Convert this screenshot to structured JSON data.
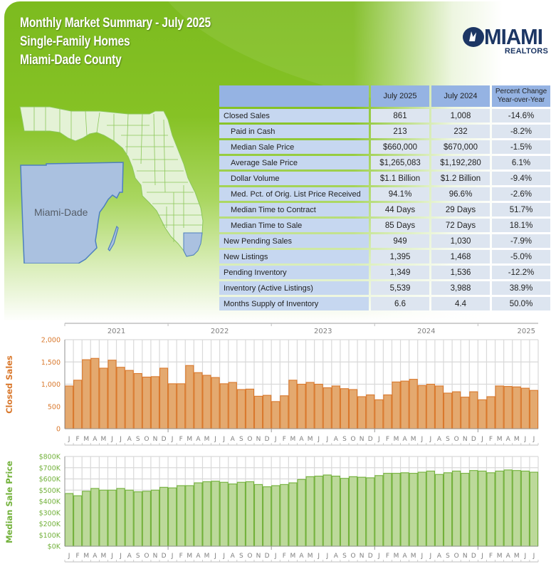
{
  "header": {
    "title_line1": "Monthly Market Summary - July 2025",
    "title_line2": "Single-Family Homes",
    "title_line3": "Miami-Dade County"
  },
  "logo": {
    "name": "MIAMI",
    "subtitle": "REALTORS"
  },
  "map": {
    "highlight_label": "Miami-Dade",
    "highlight_color": "#aac1e0",
    "state_fill": "#e4f2d6"
  },
  "summary_table": {
    "columns": [
      "",
      "July 2025",
      "July 2024",
      "Percent Change Year-over-Year"
    ],
    "col3_line1": "Percent Change",
    "col3_line2": "Year-over-Year",
    "rows": [
      {
        "label": "Closed Sales",
        "indent": false,
        "jul2025": "861",
        "jul2024": "1,008",
        "pct": "-14.6%"
      },
      {
        "label": "Paid in Cash",
        "indent": true,
        "jul2025": "213",
        "jul2024": "232",
        "pct": "-8.2%"
      },
      {
        "label": "Median Sale Price",
        "indent": true,
        "jul2025": "$660,000",
        "jul2024": "$670,000",
        "pct": "-1.5%"
      },
      {
        "label": "Average Sale Price",
        "indent": true,
        "jul2025": "$1,265,083",
        "jul2024": "$1,192,280",
        "pct": "6.1%"
      },
      {
        "label": "Dollar Volume",
        "indent": true,
        "jul2025": "$1.1 Billion",
        "jul2024": "$1.2 Billion",
        "pct": "-9.4%"
      },
      {
        "label": "Med. Pct. of Orig. List Price Received",
        "indent": true,
        "jul2025": "94.1%",
        "jul2024": "96.6%",
        "pct": "-2.6%"
      },
      {
        "label": "Median Time to Contract",
        "indent": true,
        "jul2025": "44 Days",
        "jul2024": "29 Days",
        "pct": "51.7%"
      },
      {
        "label": "Median Time to Sale",
        "indent": true,
        "jul2025": "85 Days",
        "jul2024": "72 Days",
        "pct": "18.1%"
      },
      {
        "label": "New Pending Sales",
        "indent": false,
        "jul2025": "949",
        "jul2024": "1,030",
        "pct": "-7.9%"
      },
      {
        "label": "New Listings",
        "indent": false,
        "jul2025": "1,395",
        "jul2024": "1,468",
        "pct": "-5.0%"
      },
      {
        "label": "Pending Inventory",
        "indent": false,
        "jul2025": "1,349",
        "jul2024": "1,536",
        "pct": "-12.2%"
      },
      {
        "label": "Inventory (Active Listings)",
        "indent": false,
        "jul2025": "5,539",
        "jul2024": "3,988",
        "pct": "38.9%"
      },
      {
        "label": "Months Supply of Inventory",
        "indent": false,
        "jul2025": "6.6",
        "jul2024": "4.4",
        "pct": "50.0%"
      }
    ]
  },
  "chart_data": [
    {
      "type": "bar",
      "title": "",
      "ylabel": "Closed Sales",
      "xlabel": "",
      "ylim": [
        0,
        2000
      ],
      "yticks": [
        "0",
        "500",
        "1,000",
        "1,500",
        "2,000"
      ],
      "ytick_values": [
        0,
        500,
        1000,
        1500,
        2000
      ],
      "year_labels": [
        "2021",
        "2022",
        "2023",
        "2024",
        "2025"
      ],
      "month_labels": [
        "J",
        "F",
        "M",
        "A",
        "M",
        "J",
        "J",
        "A",
        "S",
        "O",
        "N",
        "D",
        "J",
        "F",
        "M",
        "A",
        "M",
        "J",
        "J",
        "A",
        "S",
        "O",
        "N",
        "D",
        "J",
        "F",
        "M",
        "A",
        "M",
        "J",
        "J",
        "A",
        "S",
        "O",
        "N",
        "D",
        "J",
        "F",
        "M",
        "A",
        "M",
        "J",
        "J",
        "A",
        "S",
        "O",
        "N",
        "D",
        "J",
        "F",
        "M",
        "A",
        "M",
        "J",
        "J"
      ],
      "grid": true,
      "color": "#e4a96f",
      "edge_color": "#d9782c",
      "label_color": "#d9782c",
      "values": [
        960,
        1090,
        1550,
        1580,
        1360,
        1540,
        1380,
        1310,
        1240,
        1160,
        1170,
        1360,
        1010,
        1010,
        1420,
        1260,
        1200,
        1150,
        1010,
        1040,
        880,
        890,
        730,
        750,
        610,
        740,
        1090,
        1000,
        1040,
        1000,
        920,
        960,
        900,
        880,
        720,
        760,
        650,
        760,
        1050,
        1070,
        1110,
        970,
        1000,
        960,
        800,
        830,
        710,
        830,
        650,
        720,
        960,
        950,
        940,
        910,
        861
      ]
    },
    {
      "type": "bar",
      "title": "",
      "ylabel": "Median Sale Price",
      "xlabel": "",
      "ylim": [
        0,
        800
      ],
      "yticks": [
        "$0K",
        "$100K",
        "$200K",
        "$300K",
        "$400K",
        "$500K",
        "$600K",
        "$700K",
        "$800K"
      ],
      "ytick_values": [
        0,
        100,
        200,
        300,
        400,
        500,
        600,
        700,
        800
      ],
      "units": "thousands USD",
      "month_labels": [
        "J",
        "F",
        "M",
        "A",
        "M",
        "J",
        "J",
        "A",
        "S",
        "O",
        "N",
        "D",
        "J",
        "F",
        "M",
        "A",
        "M",
        "J",
        "J",
        "A",
        "S",
        "O",
        "N",
        "D",
        "J",
        "F",
        "M",
        "A",
        "M",
        "J",
        "J",
        "A",
        "S",
        "O",
        "N",
        "D",
        "J",
        "F",
        "M",
        "A",
        "M",
        "J",
        "J",
        "A",
        "S",
        "O",
        "N",
        "D",
        "J",
        "F",
        "M",
        "A",
        "M",
        "J",
        "J"
      ],
      "grid": true,
      "color": "#bcd99a",
      "edge_color": "#72b13a",
      "label_color": "#72b13a",
      "values": [
        470,
        450,
        490,
        515,
        500,
        500,
        515,
        500,
        485,
        490,
        500,
        525,
        520,
        540,
        540,
        565,
        575,
        580,
        570,
        555,
        570,
        575,
        550,
        530,
        540,
        550,
        565,
        595,
        620,
        625,
        635,
        625,
        605,
        620,
        615,
        610,
        630,
        650,
        650,
        655,
        650,
        660,
        670,
        640,
        655,
        670,
        650,
        675,
        670,
        655,
        670,
        680,
        675,
        670,
        660
      ]
    }
  ]
}
